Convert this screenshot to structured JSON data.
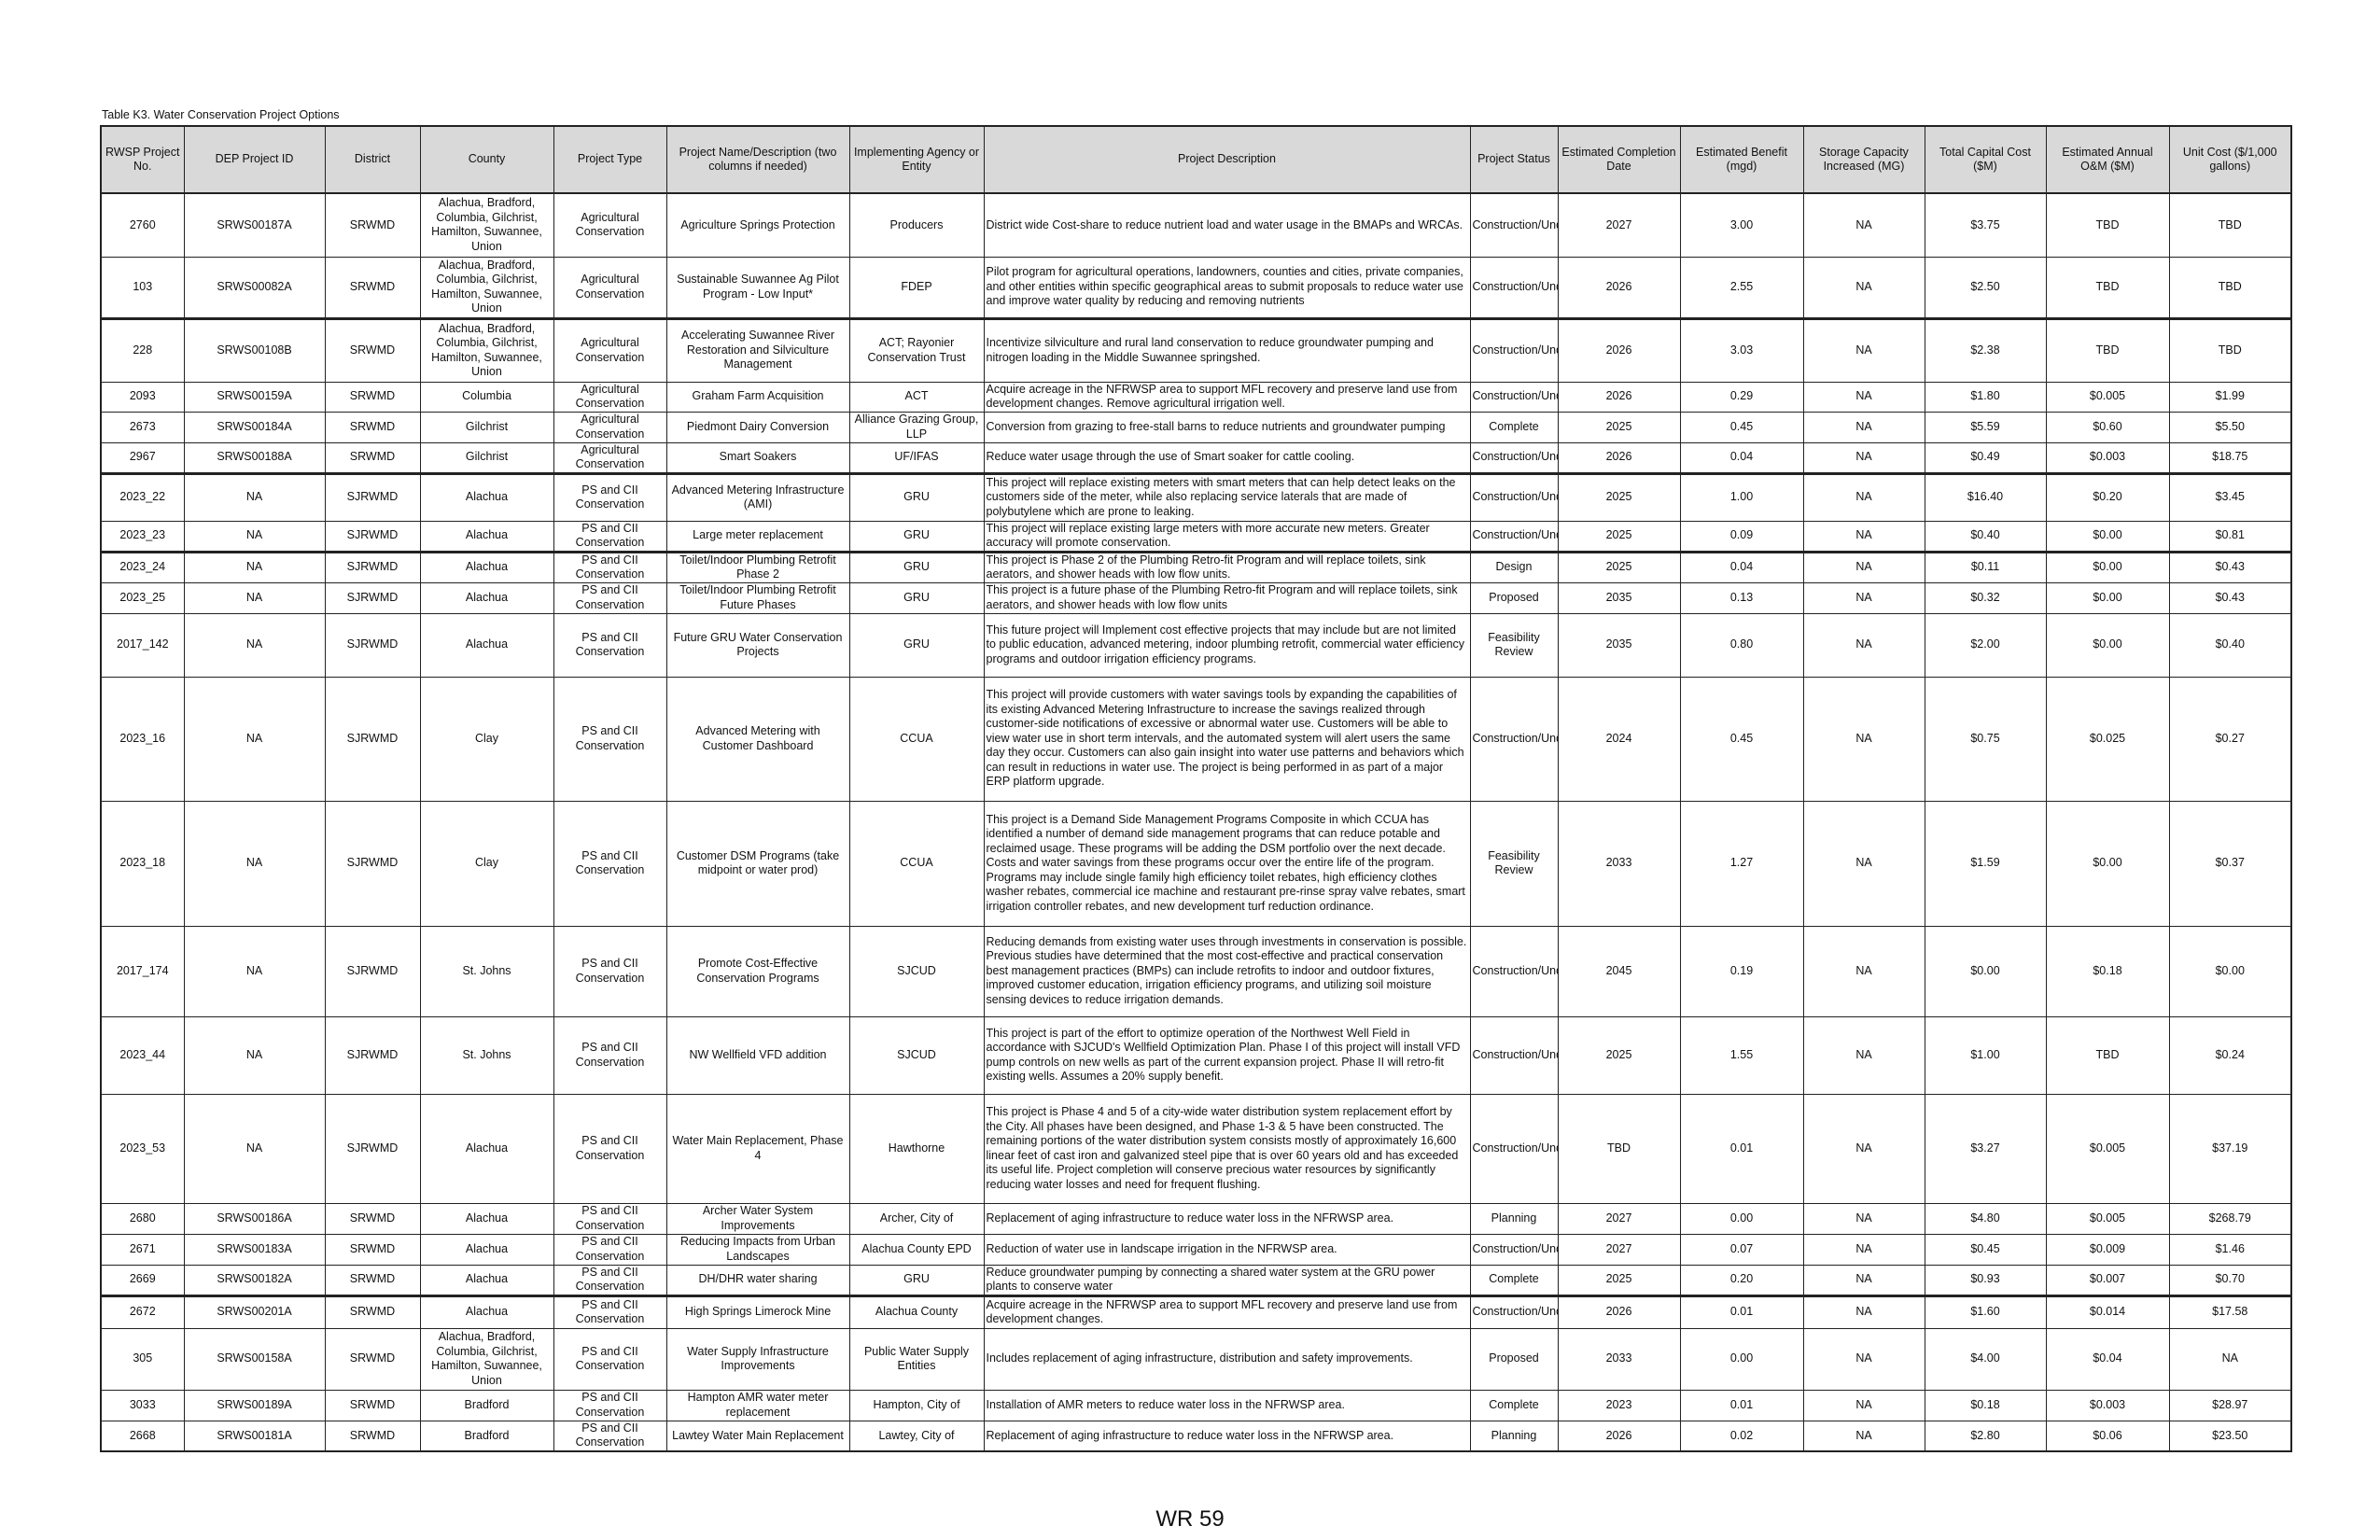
{
  "title": "Table K3. Water Conservation Project Options",
  "columns": [
    "RWSP Project No.",
    "DEP Project ID",
    "District",
    "County",
    "Project Type",
    "Project Name/Description (two columns if needed)",
    "Implementing Agency or Entity",
    "Project Description",
    "Project Status",
    "Estimated Completion Date",
    "Estimated Benefit (mgd)",
    "Storage Capacity Increased (MG)",
    "Total Capital Cost ($M)",
    "Estimated Annual O&M ($M)",
    "Unit Cost ($/1,000 gallons)"
  ],
  "rows": [
    [
      "2760",
      "SRWS00187A",
      "SRWMD",
      "Alachua, Bradford, Columbia, Gilchrist, Hamilton, Suwannee, Union",
      "Agricultural Conservation",
      "Agriculture Springs Protection",
      "Producers",
      "District wide Cost-share to reduce nutrient load and water usage in the BMAPs and WRCAs.",
      "Construction/Underway",
      "2027",
      "3.00",
      "NA",
      "$3.75",
      "TBD",
      "TBD"
    ],
    [
      "103",
      "SRWS00082A",
      "SRWMD",
      "Alachua, Bradford, Columbia, Gilchrist, Hamilton, Suwannee, Union",
      "Agricultural Conservation",
      "Sustainable Suwannee Ag Pilot Program - Low Input*",
      "FDEP",
      "Pilot program for agricultural operations, landowners, counties and cities, private companies, and other entities within specific geographical areas to submit proposals to reduce water use and improve water quality by reducing and removing nutrients",
      "Construction/Underway",
      "2026",
      "2.55",
      "NA",
      "$2.50",
      "TBD",
      "TBD"
    ],
    [
      "228",
      "SRWS00108B",
      "SRWMD",
      "Alachua, Bradford, Columbia, Gilchrist, Hamilton, Suwannee, Union",
      "Agricultural Conservation",
      "Accelerating Suwannee River Restoration and Silviculture Management",
      "ACT; Rayonier Conservation Trust",
      "Incentivize silviculture and rural land conservation to reduce groundwater pumping and nitrogen loading in the Middle Suwannee springshed.",
      "Construction/Underway",
      "2026",
      "3.03",
      "NA",
      "$2.38",
      "TBD",
      "TBD"
    ],
    [
      "2093",
      "SRWS00159A",
      "SRWMD",
      "Columbia",
      "Agricultural Conservation",
      "Graham Farm Acquisition",
      "ACT",
      "Acquire acreage in the NFRWSP area to support MFL recovery and preserve land use from development changes. Remove agricultural irrigation well.",
      "Construction/Underway",
      "2026",
      "0.29",
      "NA",
      "$1.80",
      "$0.005",
      "$1.99"
    ],
    [
      "2673",
      "SRWS00184A",
      "SRWMD",
      "Gilchrist",
      "Agricultural Conservation",
      "Piedmont Dairy Conversion",
      "Alliance Grazing Group, LLP",
      "Conversion from grazing to free-stall barns to reduce nutrients and groundwater pumping",
      "Complete",
      "2025",
      "0.45",
      "NA",
      "$5.59",
      "$0.60",
      "$5.50"
    ],
    [
      "2967",
      "SRWS00188A",
      "SRWMD",
      "Gilchrist",
      "Agricultural Conservation",
      "Smart Soakers",
      "UF/IFAS",
      "Reduce water usage through the use of Smart soaker for cattle cooling.",
      "Construction/Underway",
      "2026",
      "0.04",
      "NA",
      "$0.49",
      "$0.003",
      "$18.75"
    ],
    [
      "2023_22",
      "NA",
      "SJRWMD",
      "Alachua",
      "PS and CII Conservation",
      "Advanced Metering Infrastructure (AMI)",
      "GRU",
      "This project will replace existing meters with smart meters that can help detect leaks on the customers side of the meter, while also replacing service laterals that are made of polybutylene which are prone to leaking.",
      "Construction/Underway",
      "2025",
      "1.00",
      "NA",
      "$16.40",
      "$0.20",
      "$3.45"
    ],
    [
      "2023_23",
      "NA",
      "SJRWMD",
      "Alachua",
      "PS and CII Conservation",
      "Large meter replacement",
      "GRU",
      "This project will replace existing large meters with more accurate new meters. Greater accuracy will promote conservation.",
      "Construction/Underway",
      "2025",
      "0.09",
      "NA",
      "$0.40",
      "$0.00",
      "$0.81"
    ],
    [
      "2023_24",
      "NA",
      "SJRWMD",
      "Alachua",
      "PS and CII Conservation",
      "Toilet/Indoor Plumbing Retrofit Phase 2",
      "GRU",
      "This project is Phase 2 of the Plumbing Retro-fit Program and will replace toilets, sink aerators, and shower heads with low flow units.",
      "Design",
      "2025",
      "0.04",
      "NA",
      "$0.11",
      "$0.00",
      "$0.43"
    ],
    [
      "2023_25",
      "NA",
      "SJRWMD",
      "Alachua",
      "PS and CII Conservation",
      "Toilet/Indoor Plumbing Retrofit Future Phases",
      "GRU",
      "This project is a future phase of the Plumbing Retro-fit Program and will replace toilets, sink aerators, and shower heads with low flow units",
      "Proposed",
      "2035",
      "0.13",
      "NA",
      "$0.32",
      "$0.00",
      "$0.43"
    ],
    [
      "2017_142",
      "NA",
      "SJRWMD",
      "Alachua",
      "PS and CII Conservation",
      "Future GRU Water Conservation Projects",
      "GRU",
      "This future project will Implement cost effective projects that may include but are not limited to public education, advanced metering, indoor plumbing retrofit, commercial water efficiency programs and outdoor irrigation efficiency programs.",
      "Feasibility Review",
      "2035",
      "0.80",
      "NA",
      "$2.00",
      "$0.00",
      "$0.40"
    ],
    [
      "2023_16",
      "NA",
      "SJRWMD",
      "Clay",
      "PS and CII Conservation",
      "Advanced Metering with Customer Dashboard",
      "CCUA",
      "This project will provide customers with water savings tools by expanding the capabilities of its existing Advanced Metering Infrastructure to increase the savings realized through customer-side notifications of excessive or abnormal water use. Customers will be able to view water use in short term intervals, and the automated system will alert users the same day they occur. Customers can also gain insight into water use patterns and behaviors which can result in reductions in water use. The project is being performed in  as part of a major ERP platform upgrade.",
      "Construction/Underway",
      "2024",
      "0.45",
      "NA",
      "$0.75",
      "$0.025",
      "$0.27"
    ],
    [
      "2023_18",
      "NA",
      "SJRWMD",
      "Clay",
      "PS and CII Conservation",
      "Customer DSM Programs (take midpoint or water prod)",
      "CCUA",
      "This project is a Demand Side Management Programs Composite in which CCUA has identified a number of demand side management programs that can reduce potable and reclaimed usage. These programs will be adding the DSM portfolio over the next decade. Costs and water savings from these programs occur over the entire life of the program. Programs may include single family high efficiency toilet rebates, high efficiency clothes washer rebates, commercial ice machine and restaurant pre-rinse spray valve rebates, smart irrigation controller rebates, and new development turf reduction ordinance.",
      "Feasibility Review",
      "2033",
      "1.27",
      "NA",
      "$1.59",
      "$0.00",
      "$0.37"
    ],
    [
      "2017_174",
      "NA",
      "SJRWMD",
      "St. Johns",
      "PS and CII Conservation",
      "Promote Cost-Effective Conservation Programs",
      "SJCUD",
      "Reducing demands from existing water uses through investments in conservation is possible.  Previous studies have determined that the most cost-effective and practical conservation best management practices (BMPs) can include retrofits to indoor and outdoor fixtures, improved customer education, irrigation efficiency programs, and utilizing soil moisture sensing devices to reduce irrigation demands.",
      "Construction/Underway",
      "2045",
      "0.19",
      "NA",
      "$0.00",
      "$0.18",
      "$0.00"
    ],
    [
      "2023_44",
      "NA",
      "SJRWMD",
      "St. Johns",
      "PS and CII Conservation",
      "NW Wellfield VFD addition",
      "SJCUD",
      "This project is part of the effort to optimize operation of the Northwest Well Field in accordance with SJCUD's  Wellfield Optimization Plan. Phase I of this project will install VFD pump controls on new wells as part of the current expansion project. Phase II will retro-fit existing wells. Assumes a 20% supply benefit.",
      "Construction/Underway",
      "2025",
      "1.55",
      "NA",
      "$1.00",
      "TBD",
      "$0.24"
    ],
    [
      "2023_53",
      "NA",
      "SJRWMD",
      "Alachua",
      "PS and CII Conservation",
      "Water Main Replacement, Phase 4",
      "Hawthorne",
      "This project is Phase 4 and 5 of a city-wide water distribution system replacement effort by the City. All phases have been designed, and Phase 1-3 & 5 have been constructed. The remaining portions of the water distribution system consists mostly of approximately 16,600 linear feet of cast iron and galvanized steel pipe that is over 60 years old and has exceeded its useful life. Project completion will conserve precious water resources by significantly reducing water losses and need for frequent flushing.",
      "Construction/Underway",
      "TBD",
      "0.01",
      "NA",
      "$3.27",
      "$0.005",
      "$37.19"
    ],
    [
      "2680",
      "SRWS00186A",
      "SRWMD",
      "Alachua",
      "PS and CII Conservation",
      "Archer Water System Improvements",
      "Archer, City of",
      "Replacement of aging infrastructure to reduce water loss in the NFRWSP area.",
      "Planning",
      "2027",
      "0.00",
      "NA",
      "$4.80",
      "$0.005",
      "$268.79"
    ],
    [
      "2671",
      "SRWS00183A",
      "SRWMD",
      "Alachua",
      "PS and CII Conservation",
      "Reducing Impacts from Urban Landscapes",
      "Alachua County EPD",
      "Reduction of water use in landscape irrigation in the NFRWSP area.",
      "Construction/Underway",
      "2027",
      "0.07",
      "NA",
      "$0.45",
      "$0.009",
      "$1.46"
    ],
    [
      "2669",
      "SRWS00182A",
      "SRWMD",
      "Alachua",
      "PS and CII Conservation",
      "DH/DHR water sharing",
      "GRU",
      "Reduce groundwater pumping by connecting a shared water system at the GRU power plants to conserve water",
      "Complete",
      "2025",
      "0.20",
      "NA",
      "$0.93",
      "$0.007",
      "$0.70"
    ],
    [
      "2672",
      "SRWS00201A",
      "SRWMD",
      "Alachua",
      "PS and CII Conservation",
      "High Springs Limerock Mine",
      "Alachua County",
      "Acquire acreage in the NFRWSP area to support MFL recovery and preserve land use from development changes.",
      "Construction/Underway",
      "2026",
      "0.01",
      "NA",
      "$1.60",
      "$0.014",
      "$17.58"
    ],
    [
      "305",
      "SRWS00158A",
      "SRWMD",
      "Alachua, Bradford, Columbia, Gilchrist, Hamilton, Suwannee, Union",
      "PS and CII Conservation",
      "Water Supply Infrastructure Improvements",
      "Public Water Supply Entities",
      "Includes replacement of aging infrastructure, distribution and safety improvements.",
      "Proposed",
      "2033",
      "0.00",
      "NA",
      "$4.00",
      "$0.04",
      "NA"
    ],
    [
      "3033",
      "SRWS00189A",
      "SRWMD",
      "Bradford",
      "PS and CII Conservation",
      "Hampton AMR water meter replacement",
      "Hampton, City of",
      "Installation of AMR meters to reduce water loss in the NFRWSP area.",
      "Complete",
      "2023",
      "0.01",
      "NA",
      "$0.18",
      "$0.003",
      "$28.97"
    ],
    [
      "2668",
      "SRWS00181A",
      "SRWMD",
      "Bradford",
      "PS and CII Conservation",
      "Lawtey Water Main Replacement",
      "Lawtey, City of",
      "Replacement of aging infrastructure to reduce water loss in the NFRWSP area.",
      "Planning",
      "2026",
      "0.02",
      "NA",
      "$2.80",
      "$0.06",
      "$23.50"
    ]
  ],
  "header_bg": "#d9d9d9",
  "page_number": "WR 59"
}
